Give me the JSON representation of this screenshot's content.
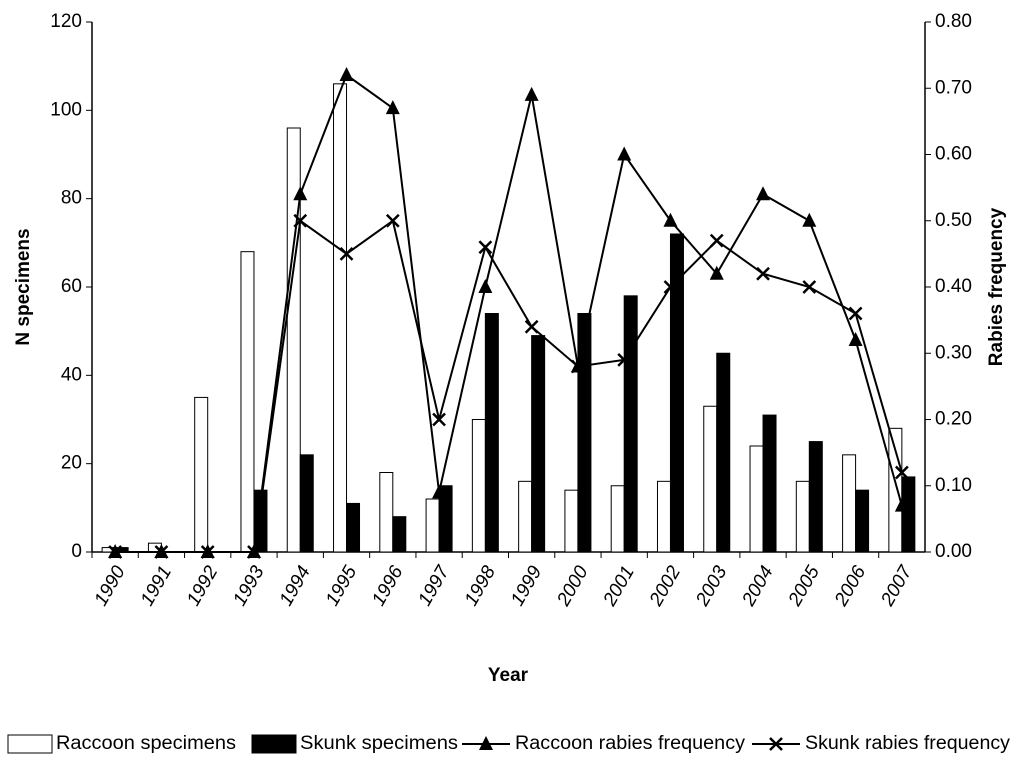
{
  "chart_data": {
    "type": "bar_line",
    "x_label": "Year",
    "y_label": "N specimens",
    "y2_label": "Rabies frequency",
    "categories": [
      "1990",
      "1991",
      "1992",
      "1993",
      "1994",
      "1995",
      "1996",
      "1997",
      "1998",
      "1999",
      "2000",
      "2001",
      "2002",
      "2003",
      "2004",
      "2005",
      "2006",
      "2007"
    ],
    "series": [
      {
        "name": "Raccoon specimens",
        "kind": "bar",
        "color": "#ffffff",
        "values": [
          1,
          2,
          35,
          68,
          96,
          106,
          18,
          12,
          30,
          16,
          14,
          15,
          16,
          33,
          24,
          16,
          22,
          28
        ]
      },
      {
        "name": "Skunk specimens",
        "kind": "bar",
        "color": "#000000",
        "values": [
          1,
          0,
          0,
          14,
          22,
          11,
          8,
          15,
          54,
          49,
          54,
          58,
          72,
          45,
          31,
          25,
          14,
          17
        ]
      },
      {
        "name": "Raccoon rabies frequency",
        "kind": "line",
        "axis": "y2",
        "marker": "triangle",
        "color": "#000000",
        "values": [
          0,
          0,
          0,
          0,
          0.54,
          0.72,
          0.67,
          0.09,
          0.4,
          0.69,
          0.28,
          0.6,
          0.5,
          0.42,
          0.54,
          0.5,
          0.32,
          0.07
        ]
      },
      {
        "name": "Skunk rabies frequency",
        "kind": "line",
        "axis": "y2",
        "marker": "x",
        "color": "#000000",
        "values": [
          0,
          0,
          0,
          0,
          0.5,
          0.45,
          0.5,
          0.2,
          0.46,
          0.34,
          0.28,
          0.29,
          0.4,
          0.47,
          0.42,
          0.4,
          0.36,
          0.12
        ]
      }
    ],
    "ylim": [
      0,
      120
    ],
    "yticks": [
      0,
      20,
      40,
      60,
      80,
      100,
      120
    ],
    "y2lim": [
      0,
      0.8
    ],
    "y2ticks": [
      {
        "value": 0,
        "label": "0.00"
      },
      {
        "value": 0.1,
        "label": "0.10"
      },
      {
        "value": 0.2,
        "label": "0.20"
      },
      {
        "value": 0.3,
        "label": "0.30"
      },
      {
        "value": 0.4,
        "label": "0.40"
      },
      {
        "value": 0.5,
        "label": "0.50"
      },
      {
        "value": 0.6,
        "label": "0.60"
      },
      {
        "value": 0.7,
        "label": "0.70"
      },
      {
        "value": 0.8,
        "label": "0.80"
      }
    ],
    "legend": "bottom"
  }
}
